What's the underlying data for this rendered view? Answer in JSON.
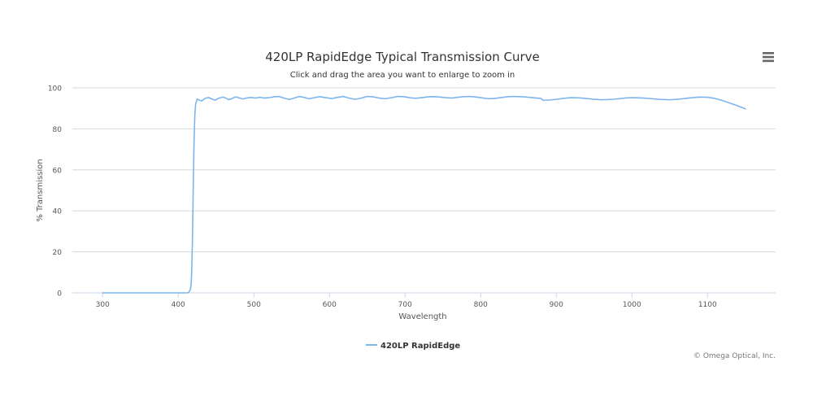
{
  "chart": {
    "title": "420LP RapidEdge Typical Transmission Curve",
    "subtitle": "Click and drag the area you want to enlarge to zoom in",
    "credits": "© Omega Optical, Inc.",
    "menu_icon": "hamburger-menu-icon"
  },
  "chart_data": {
    "type": "line",
    "title": "420LP RapidEdge Typical Transmission Curve",
    "subtitle": "Click and drag the area you want to enlarge to zoom in",
    "xlabel": "Wavelength",
    "ylabel": "% Transmission",
    "xlim": [
      260,
      1190
    ],
    "ylim": [
      0,
      100
    ],
    "x_ticks": [
      300,
      400,
      500,
      600,
      700,
      800,
      900,
      1000,
      1100
    ],
    "y_ticks": [
      0,
      20,
      40,
      60,
      80,
      100
    ],
    "grid": true,
    "legend": "bottom-center",
    "series": [
      {
        "name": "420LP RapidEdge",
        "color": "#7cb5ec",
        "points": [
          [
            300,
            0
          ],
          [
            350,
            0
          ],
          [
            400,
            0
          ],
          [
            412,
            0
          ],
          [
            414,
            0.3
          ],
          [
            416,
            1.5
          ],
          [
            417,
            4
          ],
          [
            418,
            12
          ],
          [
            419,
            30
          ],
          [
            420,
            55
          ],
          [
            421,
            75
          ],
          [
            422,
            87
          ],
          [
            423,
            92
          ],
          [
            425,
            94.5
          ],
          [
            428,
            94
          ],
          [
            431,
            93.6
          ],
          [
            435,
            94.8
          ],
          [
            440,
            95.3
          ],
          [
            445,
            94.5
          ],
          [
            449,
            94
          ],
          [
            454,
            95
          ],
          [
            459,
            95.5
          ],
          [
            463,
            95
          ],
          [
            467,
            94.2
          ],
          [
            471,
            94.8
          ],
          [
            476,
            95.6
          ],
          [
            480,
            95.2
          ],
          [
            485,
            94.6
          ],
          [
            490,
            95
          ],
          [
            496,
            95.3
          ],
          [
            502,
            95
          ],
          [
            508,
            95.4
          ],
          [
            514,
            95
          ],
          [
            520,
            95.2
          ],
          [
            526,
            95.6
          ],
          [
            533,
            95.8
          ],
          [
            540,
            95
          ],
          [
            547,
            94.3
          ],
          [
            553,
            95
          ],
          [
            560,
            95.8
          ],
          [
            567,
            95.3
          ],
          [
            573,
            94.7
          ],
          [
            580,
            95.2
          ],
          [
            587,
            95.7
          ],
          [
            595,
            95.2
          ],
          [
            603,
            94.8
          ],
          [
            610,
            95.3
          ],
          [
            618,
            95.8
          ],
          [
            626,
            95
          ],
          [
            634,
            94.4
          ],
          [
            642,
            95
          ],
          [
            650,
            95.8
          ],
          [
            658,
            95.6
          ],
          [
            666,
            95
          ],
          [
            674,
            94.7
          ],
          [
            682,
            95.2
          ],
          [
            690,
            95.8
          ],
          [
            698,
            95.7
          ],
          [
            706,
            95.2
          ],
          [
            714,
            94.9
          ],
          [
            722,
            95.2
          ],
          [
            730,
            95.6
          ],
          [
            738,
            95.7
          ],
          [
            746,
            95.5
          ],
          [
            754,
            95.2
          ],
          [
            762,
            95
          ],
          [
            770,
            95.4
          ],
          [
            778,
            95.7
          ],
          [
            786,
            95.8
          ],
          [
            794,
            95.5
          ],
          [
            802,
            95.1
          ],
          [
            810,
            94.7
          ],
          [
            818,
            94.8
          ],
          [
            826,
            95.2
          ],
          [
            834,
            95.6
          ],
          [
            842,
            95.8
          ],
          [
            850,
            95.7
          ],
          [
            858,
            95.6
          ],
          [
            866,
            95.3
          ],
          [
            874,
            95
          ],
          [
            880,
            94.8
          ],
          [
            882,
            94
          ],
          [
            890,
            94
          ],
          [
            900,
            94.4
          ],
          [
            910,
            94.9
          ],
          [
            920,
            95.2
          ],
          [
            930,
            95.1
          ],
          [
            940,
            94.8
          ],
          [
            950,
            94.4
          ],
          [
            960,
            94.2
          ],
          [
            970,
            94.3
          ],
          [
            980,
            94.6
          ],
          [
            990,
            95
          ],
          [
            1000,
            95.2
          ],
          [
            1010,
            95.1
          ],
          [
            1020,
            94.9
          ],
          [
            1030,
            94.6
          ],
          [
            1040,
            94.3
          ],
          [
            1050,
            94.2
          ],
          [
            1060,
            94.4
          ],
          [
            1070,
            94.8
          ],
          [
            1080,
            95.2
          ],
          [
            1090,
            95.5
          ],
          [
            1100,
            95.4
          ],
          [
            1110,
            94.8
          ],
          [
            1120,
            93.8
          ],
          [
            1130,
            92.5
          ],
          [
            1140,
            91.2
          ],
          [
            1150,
            89.8
          ]
        ]
      }
    ]
  }
}
